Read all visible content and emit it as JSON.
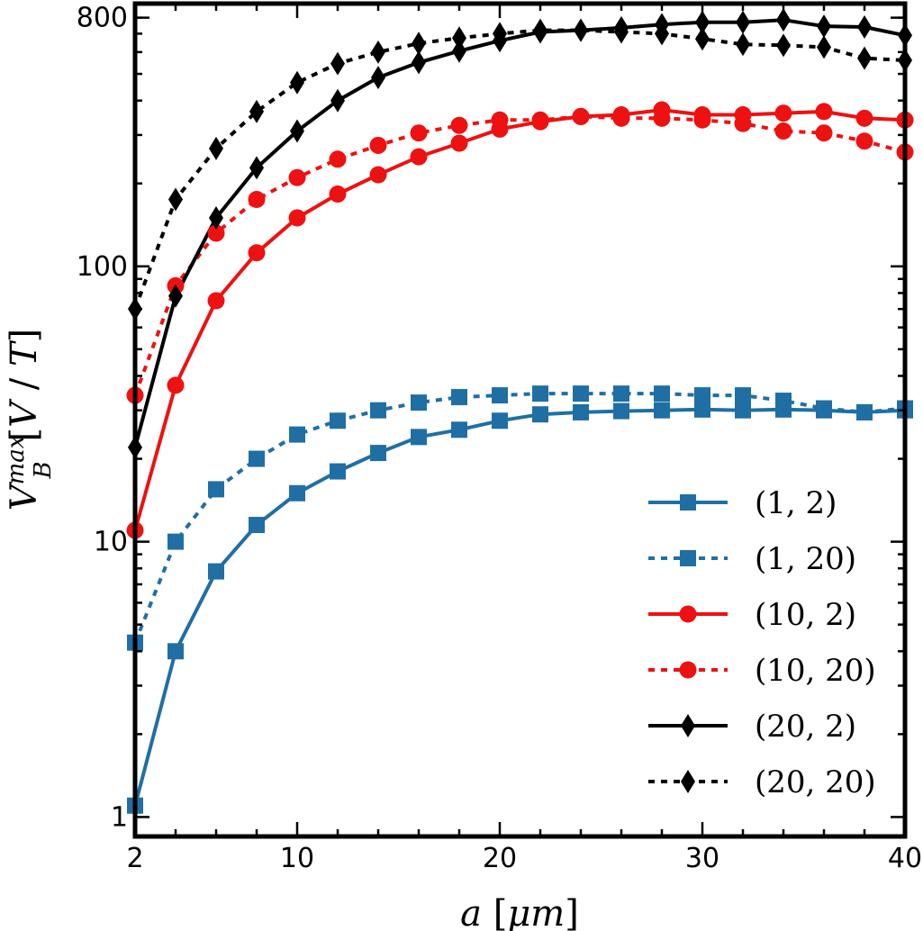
{
  "chart_data": {
    "type": "line",
    "xlabel": "a [μm]",
    "ylabel": "V̄_B^max [V / T]",
    "xlim": [
      2,
      40
    ],
    "ylim": [
      0.85,
      900
    ],
    "yscale": "log",
    "x_ticks": [
      2,
      10,
      20,
      30,
      40
    ],
    "y_ticks": [
      1,
      10,
      100,
      800
    ],
    "legend_position": "lower-right",
    "grid": false,
    "x": [
      2,
      4,
      6,
      8,
      10,
      12,
      14,
      16,
      18,
      20,
      22,
      24,
      26,
      28,
      30,
      32,
      34,
      36,
      38,
      40
    ],
    "series": [
      {
        "name": "(1, 2)",
        "color": "#1f6fa5",
        "linestyle": "solid",
        "marker": "square",
        "values": [
          1.1,
          4.0,
          7.8,
          11.5,
          15,
          18,
          21,
          24,
          25.5,
          27.5,
          29,
          29.5,
          29.8,
          30,
          30.2,
          30,
          30.2,
          30,
          29.5,
          30
        ]
      },
      {
        "name": "(1, 20)",
        "color": "#1f6fa5",
        "linestyle": "dotted",
        "marker": "square",
        "values": [
          4.3,
          10,
          15.5,
          20,
          24.5,
          27.5,
          30,
          32,
          33.5,
          34,
          34.5,
          34.5,
          34.5,
          34.5,
          34,
          34,
          32.5,
          30.5,
          29.5,
          30.5
        ]
      },
      {
        "name": "(10, 2)",
        "color": "#ee1111",
        "linestyle": "solid",
        "marker": "circle",
        "values": [
          11,
          37,
          75,
          112,
          150,
          183,
          215,
          250,
          280,
          315,
          335,
          350,
          355,
          370,
          355,
          355,
          360,
          365,
          345,
          340
        ]
      },
      {
        "name": "(10, 20)",
        "color": "#ee1111",
        "linestyle": "dotted",
        "marker": "circle",
        "values": [
          34,
          85,
          132,
          175,
          210,
          245,
          275,
          305,
          325,
          340,
          340,
          350,
          345,
          345,
          340,
          330,
          310,
          305,
          285,
          260
        ]
      },
      {
        "name": "(20, 2)",
        "color": "#000000",
        "linestyle": "solid",
        "marker": "diamond",
        "values": [
          22,
          78,
          150,
          228,
          310,
          400,
          485,
          550,
          605,
          660,
          710,
          720,
          735,
          755,
          770,
          770,
          785,
          745,
          740,
          690
        ]
      },
      {
        "name": "(20, 20)",
        "color": "#000000",
        "linestyle": "dotted",
        "marker": "diamond",
        "values": [
          70,
          175,
          268,
          365,
          465,
          545,
          600,
          645,
          675,
          700,
          720,
          720,
          710,
          700,
          670,
          640,
          635,
          625,
          570,
          560
        ]
      }
    ]
  }
}
